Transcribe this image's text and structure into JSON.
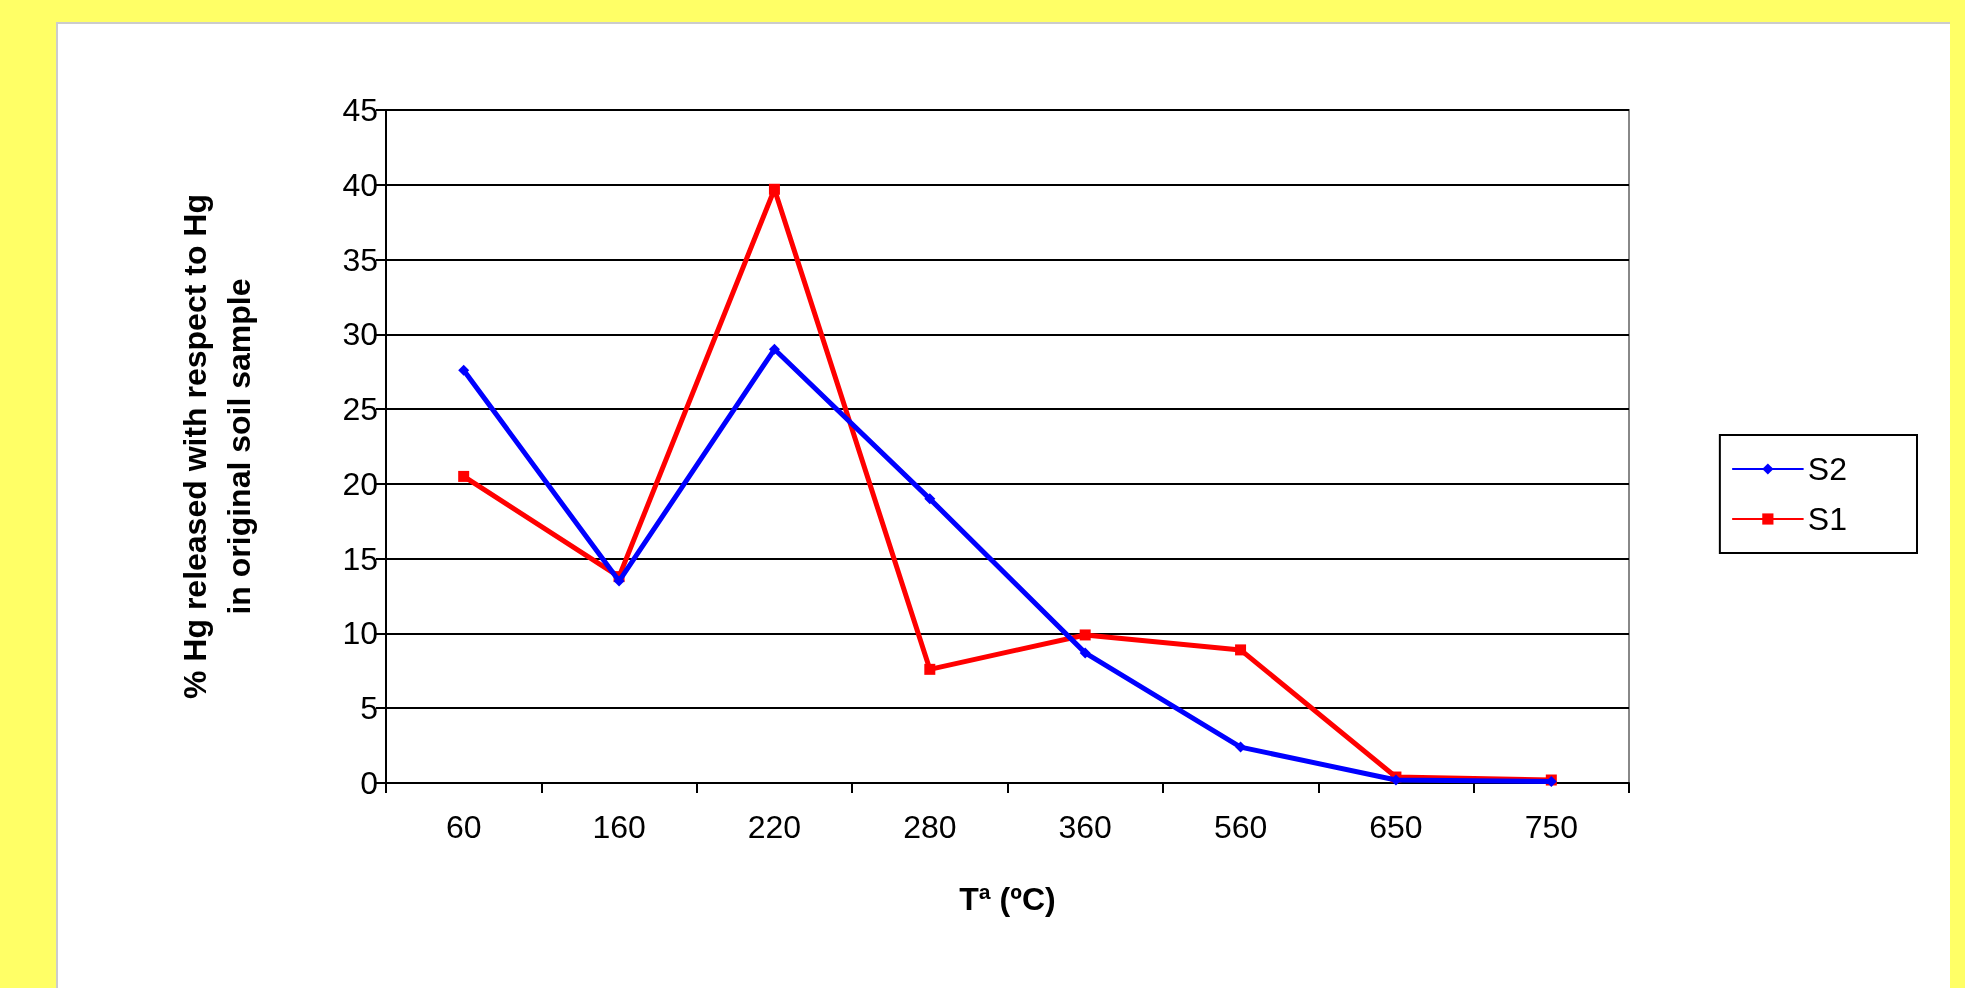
{
  "chart_data": {
    "type": "line",
    "xlabel": "Tª (ºC)",
    "ylabel": "% Hg released with respect to Hg\nin original soil sample",
    "categories": [
      "60",
      "160",
      "220",
      "280",
      "360",
      "560",
      "650",
      "750"
    ],
    "series": [
      {
        "name": "S2",
        "color": "#0000ff",
        "marker": "diamond",
        "values": [
          27.6,
          13.5,
          29,
          19,
          8.7,
          2.4,
          0.2,
          0.1
        ]
      },
      {
        "name": "S1",
        "color": "#ff0000",
        "marker": "square",
        "values": [
          20.5,
          13.8,
          39.7,
          7.6,
          9.9,
          8.9,
          0.4,
          0.2
        ]
      }
    ],
    "ylim": [
      0,
      45
    ],
    "yticks": [
      0,
      5,
      10,
      15,
      20,
      25,
      30,
      35,
      40,
      45
    ],
    "grid": "y",
    "legend": "right",
    "line_style": "solid"
  }
}
